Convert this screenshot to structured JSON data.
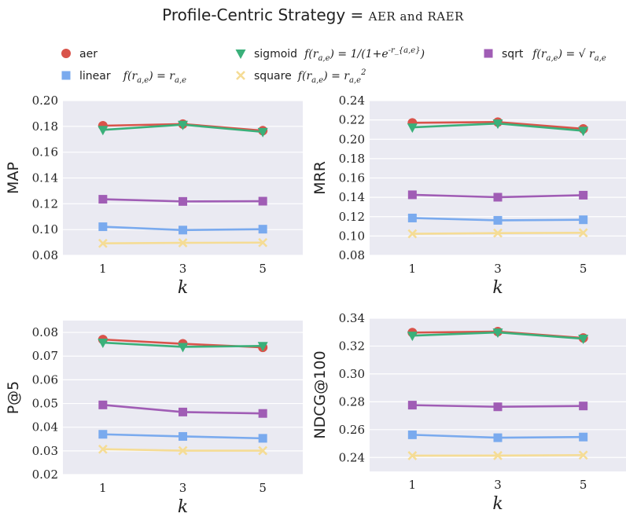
{
  "title": {
    "text": "Profile-Centric Strategy = ",
    "sc_text": "AER and RAER"
  },
  "legend": [
    {
      "key": "aer",
      "label": "aer",
      "formula": "",
      "marker": "circle"
    },
    {
      "key": "linear",
      "label": "linear",
      "formula": "f(r_{a,e}) = r_{a,e}",
      "marker": "square"
    },
    {
      "key": "sigmoid",
      "label": "sigmoid",
      "formula": "f(r_{a,e}) = 1/(1+e^{-r_{a,e}})",
      "marker": "triangle-down"
    },
    {
      "key": "square",
      "label": "square",
      "formula": "f(r_{a,e}) = r_{a,e}^2",
      "marker": "x"
    },
    {
      "key": "sqrt",
      "label": "sqrt",
      "formula": "f(r_{a,e}) = √ r_{a,e}",
      "marker": "square"
    }
  ],
  "colors": {
    "aer": "#d9534a",
    "linear": "#7aaaee",
    "sigmoid": "#3ab07a",
    "square": "#f5dc95",
    "sqrt": "#a05db5",
    "panel_bg": "#eaeaf2",
    "grid": "#ffffff"
  },
  "chart_data": [
    {
      "type": "line",
      "x": [
        1,
        3,
        5
      ],
      "xlabel": "k",
      "ylabel": "MAP",
      "ylim": [
        0.08,
        0.2
      ],
      "yticks": [
        "0.08",
        "0.10",
        "0.12",
        "0.14",
        "0.16",
        "0.18",
        "0.20"
      ],
      "xticks": [
        "1",
        "3",
        "5"
      ],
      "grid": true,
      "series": [
        {
          "name": "aer",
          "values": [
            0.1805,
            0.1818,
            0.1767
          ]
        },
        {
          "name": "linear",
          "values": [
            0.1022,
            0.0996,
            0.1003
          ]
        },
        {
          "name": "sigmoid",
          "values": [
            0.1773,
            0.1813,
            0.1757
          ]
        },
        {
          "name": "square",
          "values": [
            0.0893,
            0.0897,
            0.0899
          ]
        },
        {
          "name": "sqrt",
          "values": [
            0.1235,
            0.1218,
            0.122
          ]
        }
      ]
    },
    {
      "type": "line",
      "x": [
        1,
        3,
        5
      ],
      "xlabel": "k",
      "ylabel": "MRR",
      "ylim": [
        0.08,
        0.24
      ],
      "yticks": [
        "0.08",
        "0.10",
        "0.12",
        "0.14",
        "0.16",
        "0.18",
        "0.20",
        "0.22",
        "0.24"
      ],
      "xticks": [
        "1",
        "3",
        "5"
      ],
      "grid": true,
      "series": [
        {
          "name": "aer",
          "values": [
            0.217,
            0.2178,
            0.2108
          ]
        },
        {
          "name": "linear",
          "values": [
            0.1186,
            0.1162,
            0.1168
          ]
        },
        {
          "name": "sigmoid",
          "values": [
            0.2123,
            0.2163,
            0.2088
          ]
        },
        {
          "name": "square",
          "values": [
            0.1023,
            0.103,
            0.1033
          ]
        },
        {
          "name": "sqrt",
          "values": [
            0.1426,
            0.1401,
            0.1422
          ]
        }
      ]
    },
    {
      "type": "line",
      "x": [
        1,
        3,
        5
      ],
      "xlabel": "k",
      "ylabel": "P@5",
      "ylim": [
        0.02,
        0.085
      ],
      "yticks": [
        "0.02",
        "0.03",
        "0.04",
        "0.05",
        "0.06",
        "0.07",
        "0.08"
      ],
      "xticks": [
        "1",
        "3",
        "5"
      ],
      "grid": true,
      "series": [
        {
          "name": "aer",
          "values": [
            0.077,
            0.0752,
            0.0737
          ]
        },
        {
          "name": "linear",
          "values": [
            0.037,
            0.0361,
            0.0353
          ]
        },
        {
          "name": "sigmoid",
          "values": [
            0.0757,
            0.0739,
            0.0743
          ]
        },
        {
          "name": "square",
          "values": [
            0.0307,
            0.0301,
            0.0301
          ]
        },
        {
          "name": "sqrt",
          "values": [
            0.0494,
            0.0464,
            0.0458
          ]
        }
      ]
    },
    {
      "type": "line",
      "x": [
        1,
        3,
        5
      ],
      "xlabel": "k",
      "ylabel": "NDCG@100",
      "ylim": [
        0.23,
        0.34
      ],
      "yticks": [
        "0.24",
        "0.26",
        "0.28",
        "0.30",
        "0.32",
        "0.34"
      ],
      "xticks": [
        "1",
        "3",
        "5"
      ],
      "grid": true,
      "series": [
        {
          "name": "aer",
          "values": [
            0.3297,
            0.3304,
            0.3258
          ]
        },
        {
          "name": "linear",
          "values": [
            0.2563,
            0.2542,
            0.2547
          ]
        },
        {
          "name": "sigmoid",
          "values": [
            0.3275,
            0.3298,
            0.3253
          ]
        },
        {
          "name": "square",
          "values": [
            0.2413,
            0.2414,
            0.2417
          ]
        },
        {
          "name": "sqrt",
          "values": [
            0.2776,
            0.2764,
            0.277
          ]
        }
      ]
    }
  ]
}
